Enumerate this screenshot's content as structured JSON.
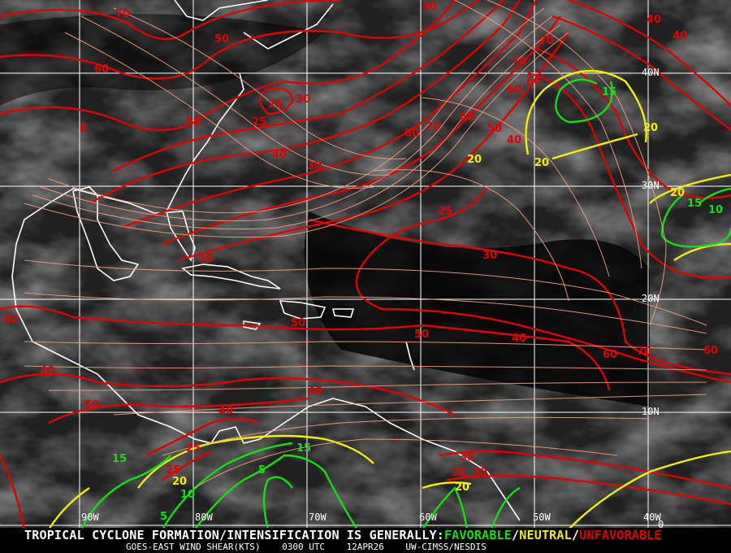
{
  "colors": {
    "favorable": "#10e010",
    "neutral": "#f0f000",
    "unfavorable": "#e00000",
    "streamline": "#f0a080",
    "grid": "#ffffff"
  },
  "grid": {
    "longitudes": [
      "90W",
      "80W",
      "70W",
      "60W",
      "50W",
      "40W"
    ],
    "latitudes": [
      "40N",
      "30N",
      "20N",
      "10N",
      "0"
    ]
  },
  "contour_labels": {
    "unfavorable": [
      "70",
      "50",
      "60",
      "40",
      "40",
      "40",
      "0",
      "50",
      "25",
      "30",
      "25",
      "40",
      "30",
      "60",
      "70",
      "60",
      "50",
      "40",
      "60",
      "60",
      "70",
      "70",
      "25",
      "30",
      "30",
      "50",
      "50",
      "40",
      "60",
      "70",
      "60",
      "40",
      "40",
      "50",
      "40",
      "40",
      "25",
      "25",
      "35",
      "25",
      "30"
    ],
    "neutral": [
      "20",
      "20",
      "20",
      "20",
      "20",
      "20"
    ],
    "favorable": [
      "15",
      "15",
      "10",
      "15",
      "15",
      "10",
      "5",
      "5"
    ]
  },
  "banner": {
    "prefix": "TROPICAL CYCLONE FORMATION/INTENSIFICATION IS GENERALLY:",
    "favorable": "FAVORABLE",
    "sep1": "/",
    "neutral": "NEUTRAL",
    "sep2": "/",
    "unfavorable": "UNFAVORABLE",
    "product": "GOES-EAST WIND SHEAR(KTS)",
    "time": "0300 UTC",
    "date": "12APR26",
    "source": "UW-CIMSS/NESDIS"
  }
}
